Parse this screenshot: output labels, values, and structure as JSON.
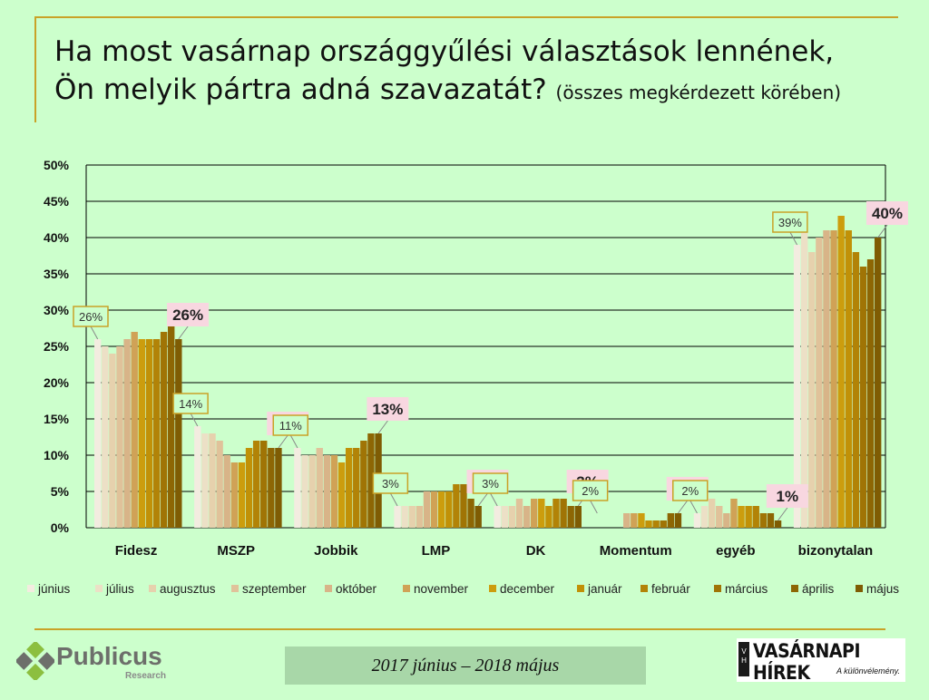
{
  "title": {
    "main_line1": "Ha most vasárnap országgyűlési választások lennének,",
    "main_line2": "Ön melyik pártra adná szavazatát?",
    "sub": "(összes megkérdezett körében)"
  },
  "footer": {
    "period": "2017 június – 2018 május",
    "publicus_name": "Publicus",
    "publicus_sub": "Research",
    "vh_name": "VASÁRNAPI HÍREK",
    "vh_box": "V H",
    "vh_tagline": "A különvélemény."
  },
  "colors": {
    "background": "#ccffcc",
    "gridline": "#000000",
    "frame": "#c9a227",
    "label_box_fill": "#f8d7e0",
    "month_colors": [
      "#f3ece0",
      "#ece0c6",
      "#e6d1ad",
      "#e0c29a",
      "#d8b488",
      "#d0a256",
      "#cc9d0d",
      "#c19107",
      "#b28307",
      "#a07405",
      "#8d6604",
      "#7f5c03"
    ]
  },
  "chart_data": {
    "type": "bar",
    "categories": [
      "Fidesz",
      "MSZP",
      "Jobbik",
      "LMP",
      "DK",
      "Momentum",
      "egyéb",
      "bizonytalan"
    ],
    "ylim": [
      0,
      50
    ],
    "yticks": [
      "0%",
      "5%",
      "10%",
      "15%",
      "20%",
      "25%",
      "30%",
      "35%",
      "40%",
      "45%",
      "50%"
    ],
    "grid": true,
    "legend_position": "bottom",
    "series": [
      {
        "name": "június",
        "values": [
          26,
          14,
          11,
          3,
          3,
          null,
          2,
          39
        ]
      },
      {
        "name": "július",
        "values": [
          25,
          13,
          10,
          3,
          3,
          null,
          3,
          41
        ]
      },
      {
        "name": "augusztus",
        "values": [
          24,
          13,
          10,
          3,
          3,
          null,
          4,
          38
        ]
      },
      {
        "name": "szeptember",
        "values": [
          25,
          12,
          11,
          3,
          4,
          null,
          3,
          40
        ]
      },
      {
        "name": "október",
        "values": [
          26,
          10,
          10,
          5,
          3,
          2,
          2,
          41
        ]
      },
      {
        "name": "november",
        "values": [
          27,
          9,
          10,
          5,
          4,
          2,
          4,
          41
        ]
      },
      {
        "name": "december",
        "values": [
          26,
          9,
          9,
          5,
          4,
          2,
          3,
          43
        ]
      },
      {
        "name": "január",
        "values": [
          26,
          11,
          11,
          5,
          3,
          1,
          3,
          41
        ]
      },
      {
        "name": "február",
        "values": [
          26,
          12,
          11,
          6,
          4,
          1,
          3,
          38
        ]
      },
      {
        "name": "március",
        "values": [
          27,
          12,
          12,
          6,
          4,
          1,
          2,
          36
        ]
      },
      {
        "name": "április",
        "values": [
          28,
          11,
          13,
          4,
          3,
          2,
          2,
          37
        ]
      },
      {
        "name": "május",
        "values": [
          26,
          11,
          13,
          3,
          3,
          2,
          1,
          40
        ]
      }
    ],
    "first_labels": [
      "26%",
      "14%",
      "11%",
      "3%",
      "3%",
      "2%",
      "2%",
      "39%"
    ],
    "last_labels": [
      "26%",
      "11%",
      "13%",
      "3%",
      "3%",
      "2%",
      "1%",
      "40%"
    ]
  }
}
